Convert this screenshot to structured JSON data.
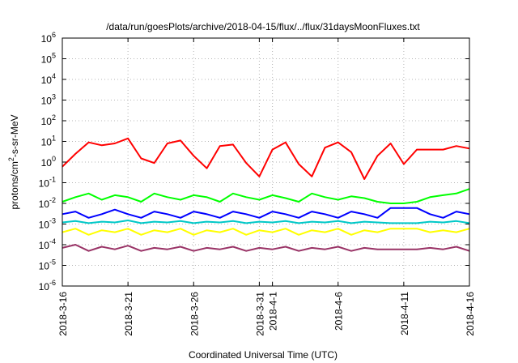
{
  "chart_data": {
    "type": "line",
    "title": "/data/run/goesPlots/archive/2018-04-15/flux/../flux/31daysMoonFluxes.txt",
    "xlabel": "Coordinated Universal Time (UTC)",
    "ylabel": "protons/cm2-s-sr-MeV",
    "yscale": "log",
    "ylim": [
      1e-06,
      1000000.0
    ],
    "xlim": [
      "2018-03-16",
      "2018-04-16"
    ],
    "grid": true,
    "x_ticks": [
      "2018-3-16",
      "2018-3-21",
      "2018-3-26",
      "2018-3-31",
      "2018-4-1",
      "2018-4-6",
      "2018-4-11",
      "2018-4-16"
    ],
    "y_ticks": [
      {
        "base": "10",
        "exp": "-6"
      },
      {
        "base": "10",
        "exp": "-5"
      },
      {
        "base": "10",
        "exp": "-4"
      },
      {
        "base": "10",
        "exp": "-3"
      },
      {
        "base": "10",
        "exp": "-2"
      },
      {
        "base": "10",
        "exp": "-1"
      },
      {
        "base": "10",
        "exp": "0"
      },
      {
        "base": "10",
        "exp": "1"
      },
      {
        "base": "10",
        "exp": "2"
      },
      {
        "base": "10",
        "exp": "3"
      },
      {
        "base": "10",
        "exp": "4"
      },
      {
        "base": "10",
        "exp": "5"
      },
      {
        "base": "10",
        "exp": "6"
      }
    ],
    "series": [
      {
        "color": "#ff0000",
        "values": [
          0.6,
          2.5,
          9.0,
          6.5,
          8.0,
          14.0,
          1.5,
          0.9,
          8.0,
          11.0,
          2.0,
          0.5,
          6.0,
          7.0,
          0.9,
          0.2,
          4.0,
          9.0,
          0.8,
          0.2,
          5.0,
          9.0,
          3.0,
          0.15,
          2.0,
          8.0,
          0.8,
          4.0,
          4.0,
          4.0,
          6.0,
          4.5
        ]
      },
      {
        "color": "#00ff00",
        "values": [
          0.012,
          0.02,
          0.03,
          0.015,
          0.025,
          0.02,
          0.012,
          0.03,
          0.02,
          0.015,
          0.025,
          0.02,
          0.012,
          0.03,
          0.02,
          0.015,
          0.025,
          0.018,
          0.012,
          0.03,
          0.02,
          0.015,
          0.022,
          0.018,
          0.012,
          0.01,
          0.01,
          0.012,
          0.02,
          0.025,
          0.03,
          0.05
        ]
      },
      {
        "color": "#0000ff",
        "values": [
          0.003,
          0.004,
          0.002,
          0.003,
          0.005,
          0.003,
          0.002,
          0.004,
          0.003,
          0.002,
          0.004,
          0.003,
          0.002,
          0.004,
          0.003,
          0.002,
          0.004,
          0.003,
          0.002,
          0.004,
          0.003,
          0.002,
          0.004,
          0.003,
          0.002,
          0.006,
          0.006,
          0.006,
          0.003,
          0.002,
          0.004,
          0.003
        ]
      },
      {
        "color": "#00c8c8",
        "values": [
          0.0012,
          0.0014,
          0.0011,
          0.0013,
          0.0012,
          0.0015,
          0.0011,
          0.0013,
          0.0012,
          0.0014,
          0.0011,
          0.0013,
          0.0012,
          0.0014,
          0.0011,
          0.0013,
          0.0012,
          0.0014,
          0.0011,
          0.0013,
          0.0012,
          0.0014,
          0.0011,
          0.0013,
          0.0012,
          0.0011,
          0.0011,
          0.0011,
          0.0013,
          0.0012,
          0.0014,
          0.0011
        ]
      },
      {
        "color": "#ffff00",
        "values": [
          0.0004,
          0.0006,
          0.0003,
          0.0005,
          0.0004,
          0.0006,
          0.0003,
          0.0005,
          0.0004,
          0.0006,
          0.0003,
          0.0005,
          0.0004,
          0.0006,
          0.0003,
          0.0005,
          0.0004,
          0.0006,
          0.0003,
          0.0005,
          0.0004,
          0.0006,
          0.0003,
          0.0005,
          0.0004,
          0.0006,
          0.0006,
          0.0006,
          0.0004,
          0.0005,
          0.0004,
          0.0006
        ]
      },
      {
        "color": "#993366",
        "values": [
          7e-05,
          0.0001,
          5e-05,
          8e-05,
          6e-05,
          9e-05,
          5e-05,
          7e-05,
          6e-05,
          8e-05,
          5e-05,
          7e-05,
          6e-05,
          8e-05,
          5e-05,
          7e-05,
          6e-05,
          8e-05,
          5e-05,
          7e-05,
          6e-05,
          8e-05,
          5e-05,
          7e-05,
          6e-05,
          6e-05,
          6e-05,
          6e-05,
          7e-05,
          6e-05,
          8e-05,
          5e-05
        ]
      }
    ]
  }
}
